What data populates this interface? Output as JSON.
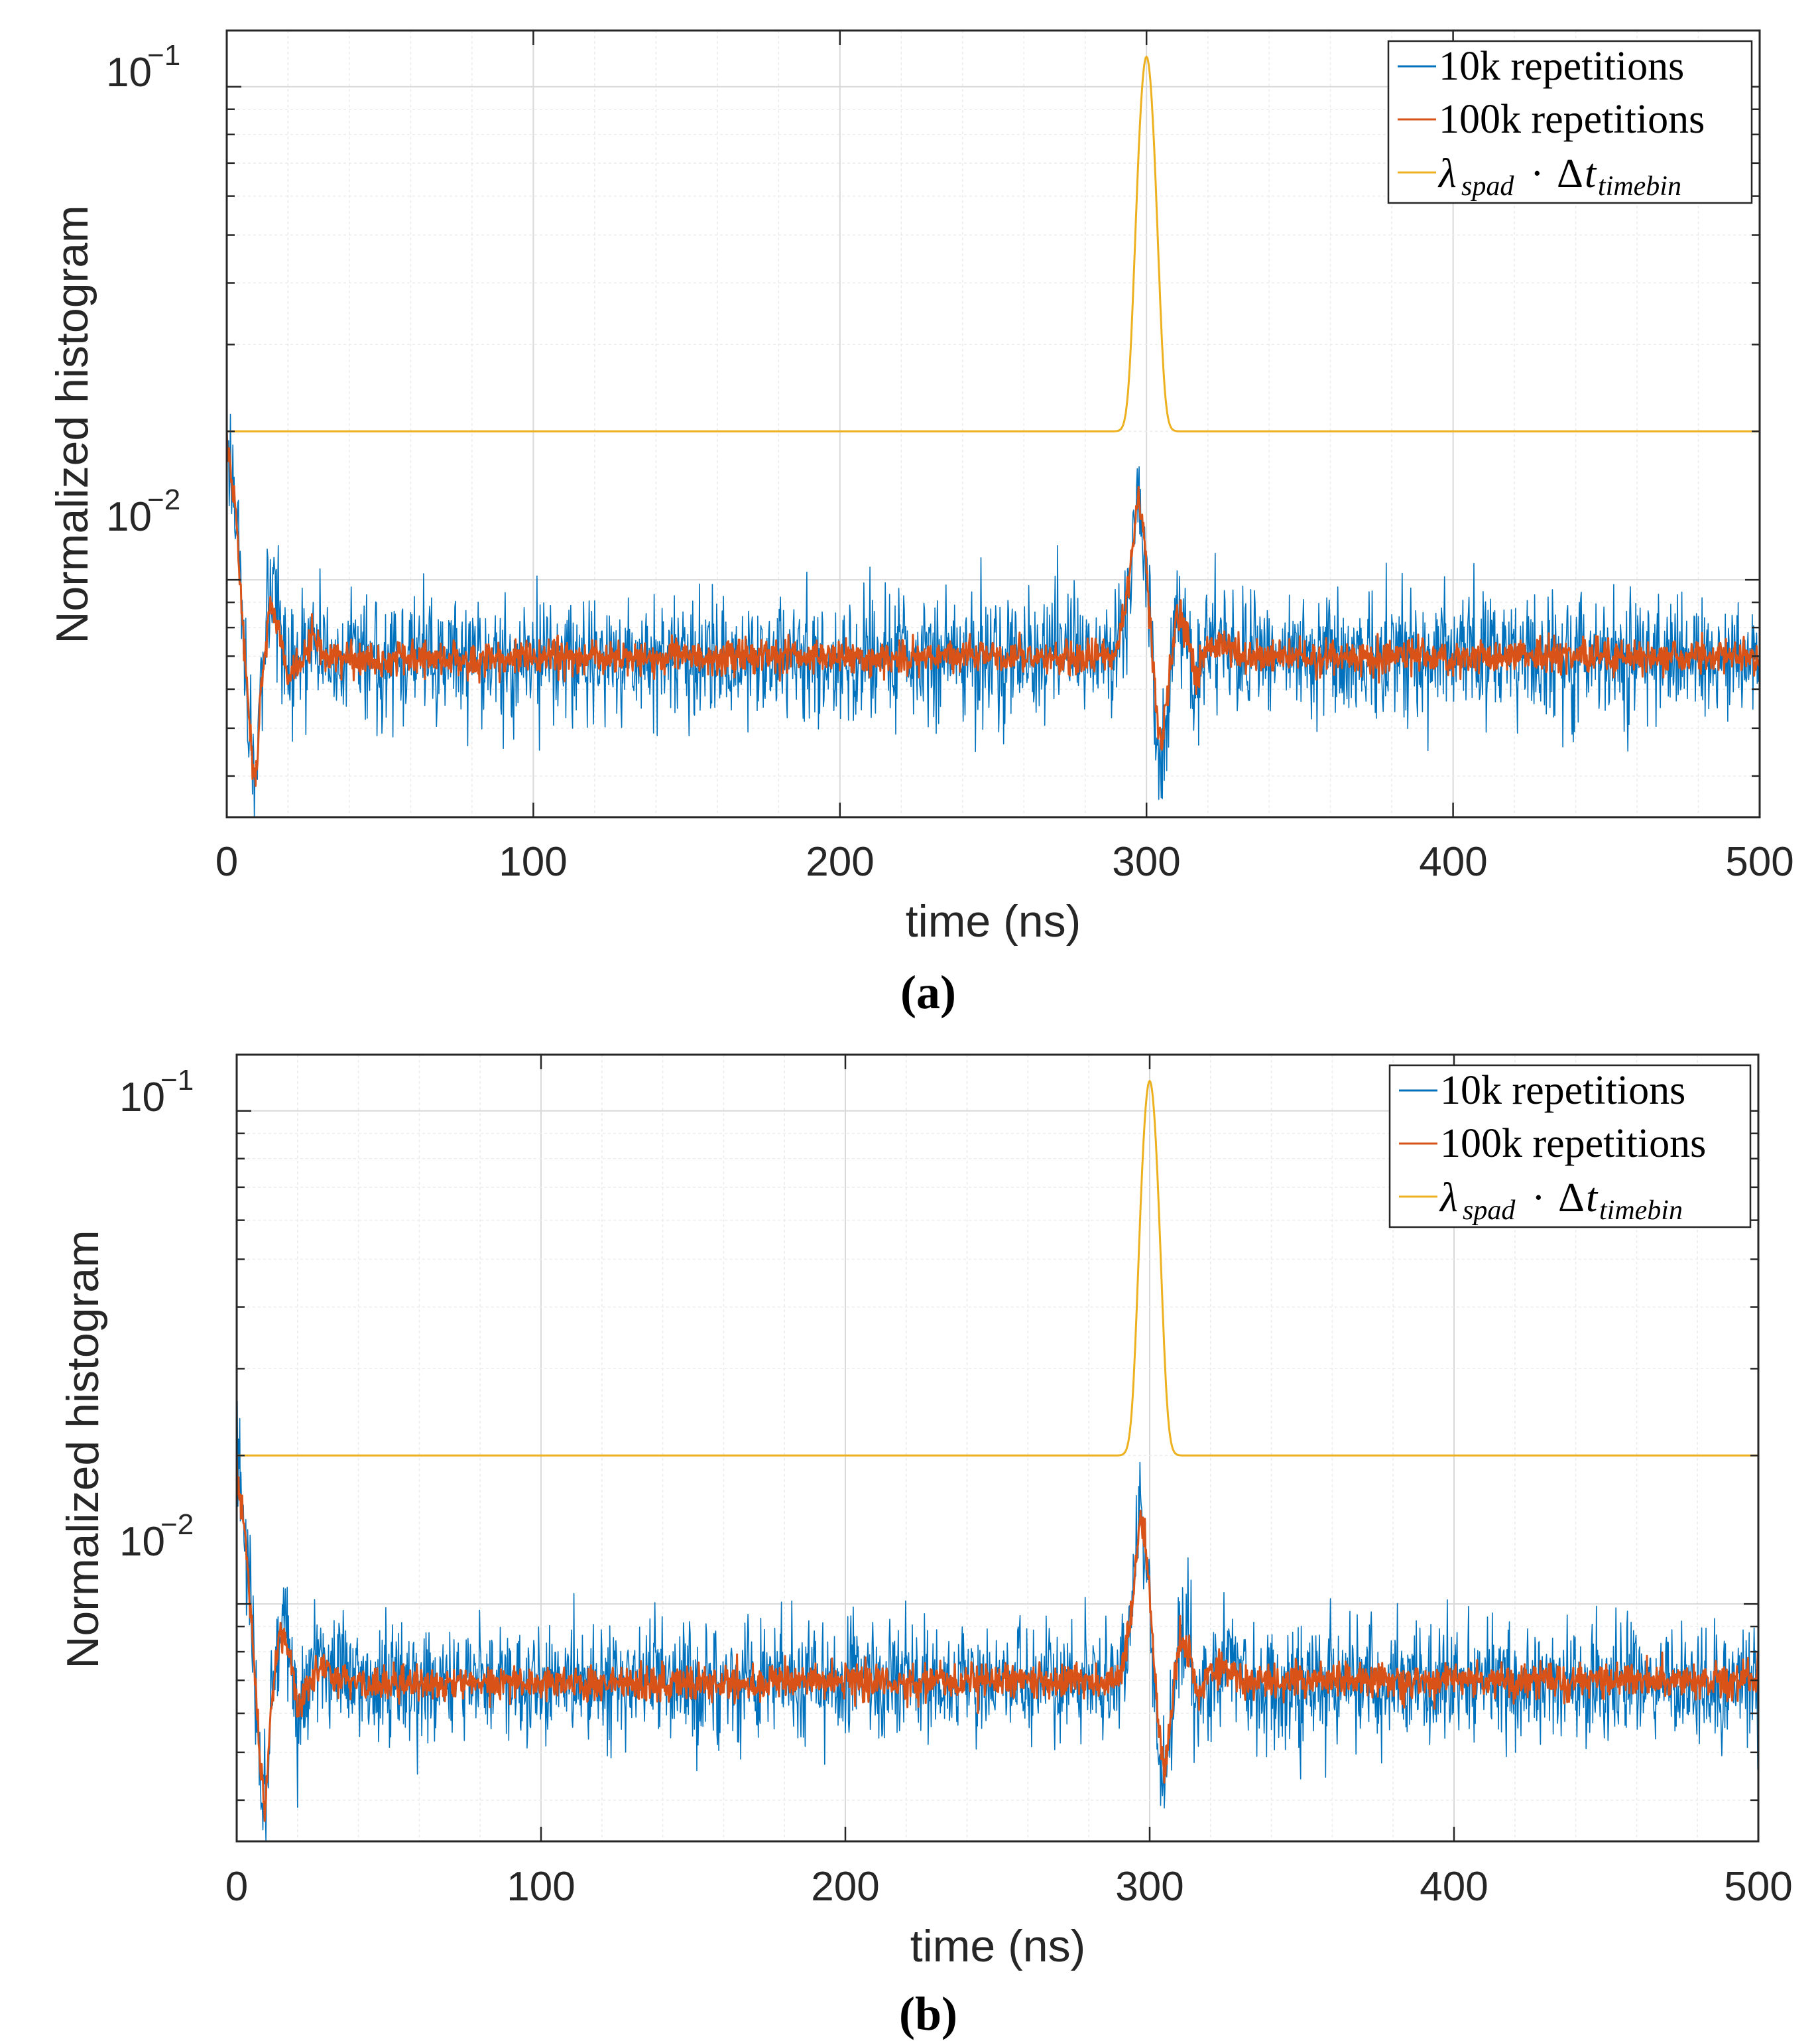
{
  "chart_data": [
    {
      "panel": "(a)",
      "type": "line",
      "xlabel": "time (ns)",
      "ylabel": "Normalized histogram",
      "xlim": [
        0,
        500
      ],
      "ylim": [
        0.0033,
        0.13
      ],
      "yscale": "log",
      "xticks": [
        "0",
        "100",
        "200",
        "300",
        "400",
        "500"
      ],
      "xtick_values": [
        0,
        100,
        200,
        300,
        400,
        500
      ],
      "yticks": [
        {
          "base": "10",
          "exp": "−2",
          "value": 0.01
        },
        {
          "base": "10",
          "exp": "−1",
          "value": 0.1
        }
      ],
      "grid": true,
      "legend_position": "top-right",
      "series": [
        {
          "name": "10k repetitions",
          "color": "#0072BD",
          "noise": 0.14,
          "baseline": 0.007,
          "points": [
            [
              0,
              0.02
            ],
            [
              3,
              0.014
            ],
            [
              6,
              0.007
            ],
            [
              8,
              0.0042
            ],
            [
              9.5,
              0.0036
            ],
            [
              11,
              0.0058
            ],
            [
              14,
              0.009
            ],
            [
              17,
              0.0084
            ],
            [
              20,
              0.006
            ],
            [
              24,
              0.0068
            ],
            [
              28,
              0.0076
            ],
            [
              32,
              0.007
            ],
            [
              40,
              0.0069
            ],
            [
              290,
              0.007
            ],
            [
              294,
              0.0095
            ],
            [
              297,
              0.0155
            ],
            [
              299,
              0.013
            ],
            [
              301,
              0.0085
            ],
            [
              303,
              0.0052
            ],
            [
              305,
              0.0042
            ],
            [
              307,
              0.0058
            ],
            [
              310,
              0.0088
            ],
            [
              313,
              0.0082
            ],
            [
              316,
              0.0062
            ],
            [
              320,
              0.0072
            ],
            [
              324,
              0.0076
            ],
            [
              330,
              0.007
            ],
            [
              500,
              0.007
            ]
          ]
        },
        {
          "name": "100k repetitions",
          "color": "#D95319",
          "noise": 0.04,
          "baseline": 0.007,
          "points": [
            [
              0,
              0.019
            ],
            [
              3,
              0.0135
            ],
            [
              6,
              0.007
            ],
            [
              8,
              0.0044
            ],
            [
              9.5,
              0.0039
            ],
            [
              11,
              0.0058
            ],
            [
              14,
              0.0088
            ],
            [
              17,
              0.0082
            ],
            [
              20,
              0.0062
            ],
            [
              24,
              0.0069
            ],
            [
              28,
              0.0075
            ],
            [
              32,
              0.007
            ],
            [
              40,
              0.0069
            ],
            [
              290,
              0.007
            ],
            [
              294,
              0.0094
            ],
            [
              297,
              0.0148
            ],
            [
              299,
              0.0128
            ],
            [
              301,
              0.0085
            ],
            [
              303,
              0.0055
            ],
            [
              305,
              0.0046
            ],
            [
              307,
              0.006
            ],
            [
              310,
              0.0086
            ],
            [
              313,
              0.008
            ],
            [
              316,
              0.0064
            ],
            [
              320,
              0.0072
            ],
            [
              324,
              0.0075
            ],
            [
              330,
              0.007
            ],
            [
              500,
              0.007
            ]
          ]
        },
        {
          "name": "λspad · Δttimebin",
          "color": "#EDB120",
          "baseline": 0.02,
          "peak": 0.115,
          "peak_center": 300,
          "peak_sigma": 2.4
        }
      ]
    },
    {
      "panel": "(b)",
      "type": "line",
      "xlabel": "time (ns)",
      "ylabel": "Normalized histogram",
      "xlim": [
        0,
        500
      ],
      "ylim": [
        0.0033,
        0.13
      ],
      "yscale": "log",
      "xticks": [
        "0",
        "100",
        "200",
        "300",
        "400",
        "500"
      ],
      "xtick_values": [
        0,
        100,
        200,
        300,
        400,
        500
      ],
      "yticks": [
        {
          "base": "10",
          "exp": "−2",
          "value": 0.01
        },
        {
          "base": "10",
          "exp": "−1",
          "value": 0.1
        }
      ],
      "grid": true,
      "legend_position": "top-right",
      "series": [
        {
          "name": "10k repetitions",
          "color": "#0072BD",
          "noise": 0.14,
          "baseline": 0.007,
          "points": [
            [
              0,
              0.02
            ],
            [
              3,
              0.014
            ],
            [
              6,
              0.007
            ],
            [
              8,
              0.0042
            ],
            [
              9.5,
              0.0036
            ],
            [
              11,
              0.0058
            ],
            [
              14,
              0.009
            ],
            [
              17,
              0.0084
            ],
            [
              20,
              0.006
            ],
            [
              24,
              0.0068
            ],
            [
              28,
              0.0076
            ],
            [
              32,
              0.007
            ],
            [
              40,
              0.0069
            ],
            [
              290,
              0.007
            ],
            [
              294,
              0.0095
            ],
            [
              297,
              0.0155
            ],
            [
              299,
              0.013
            ],
            [
              301,
              0.0085
            ],
            [
              303,
              0.0052
            ],
            [
              305,
              0.0042
            ],
            [
              307,
              0.0058
            ],
            [
              310,
              0.0088
            ],
            [
              313,
              0.0082
            ],
            [
              316,
              0.0062
            ],
            [
              320,
              0.0072
            ],
            [
              324,
              0.0076
            ],
            [
              330,
              0.007
            ],
            [
              500,
              0.007
            ]
          ]
        },
        {
          "name": "100k repetitions",
          "color": "#D95319",
          "noise": 0.04,
          "baseline": 0.007,
          "points": [
            [
              0,
              0.019
            ],
            [
              3,
              0.0135
            ],
            [
              6,
              0.007
            ],
            [
              8,
              0.0044
            ],
            [
              9.5,
              0.0039
            ],
            [
              11,
              0.0058
            ],
            [
              14,
              0.0088
            ],
            [
              17,
              0.0082
            ],
            [
              20,
              0.0062
            ],
            [
              24,
              0.0069
            ],
            [
              28,
              0.0075
            ],
            [
              32,
              0.007
            ],
            [
              40,
              0.0069
            ],
            [
              290,
              0.007
            ],
            [
              294,
              0.0094
            ],
            [
              297,
              0.0148
            ],
            [
              299,
              0.0128
            ],
            [
              301,
              0.0085
            ],
            [
              303,
              0.0055
            ],
            [
              305,
              0.0046
            ],
            [
              307,
              0.006
            ],
            [
              310,
              0.0086
            ],
            [
              313,
              0.008
            ],
            [
              316,
              0.0064
            ],
            [
              320,
              0.0072
            ],
            [
              324,
              0.0075
            ],
            [
              330,
              0.007
            ],
            [
              500,
              0.007
            ]
          ]
        },
        {
          "name": "λspad · Δttimebin",
          "color": "#EDB120",
          "baseline": 0.02,
          "peak": 0.115,
          "peak_center": 300,
          "peak_sigma": 2.4
        }
      ]
    }
  ],
  "legend": {
    "entry1": "10k repetitions",
    "entry2": "100k repetitions",
    "entry3_lambda": "λ",
    "entry3_lambda_sub": "spad",
    "entry3_dot": "·",
    "entry3_delta": "Δ",
    "entry3_t": "t",
    "entry3_t_sub": "timebin"
  },
  "labels": {
    "xlabel": "time (ns)",
    "ylabel": "Normalized histogram",
    "panel_a": "(a)",
    "panel_b": "(b)",
    "ytick_base": "10",
    "ytick_exp_minus1": "−1",
    "ytick_exp_minus2": "−2",
    "xtick_0": "0",
    "xtick_100": "100",
    "xtick_200": "200",
    "xtick_300": "300",
    "xtick_400": "400",
    "xtick_500": "500"
  }
}
